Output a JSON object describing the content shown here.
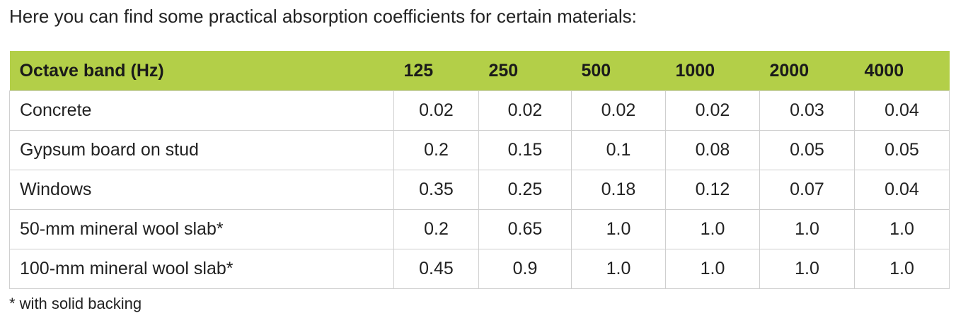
{
  "intro": "Here you can find some practical absorption coefficients for certain materials:",
  "table": {
    "header": [
      "Octave band (Hz)",
      "125",
      "250",
      "500",
      "1000",
      "2000",
      "4000"
    ],
    "rows": [
      [
        "Concrete",
        "0.02",
        "0.02",
        "0.02",
        "0.02",
        "0.03",
        "0.04"
      ],
      [
        "Gypsum board on stud",
        "0.2",
        "0.15",
        "0.1",
        "0.08",
        "0.05",
        "0.05"
      ],
      [
        "Windows",
        "0.35",
        "0.25",
        "0.18",
        "0.12",
        "0.07",
        "0.04"
      ],
      [
        "50-mm mineral wool slab*",
        "0.2",
        "0.65",
        "1.0",
        "1.0",
        "1.0",
        "1.0"
      ],
      [
        "100-mm mineral wool slab*",
        "0.45",
        "0.9",
        "1.0",
        "1.0",
        "1.0",
        "1.0"
      ]
    ]
  },
  "footnote": "* with solid backing"
}
